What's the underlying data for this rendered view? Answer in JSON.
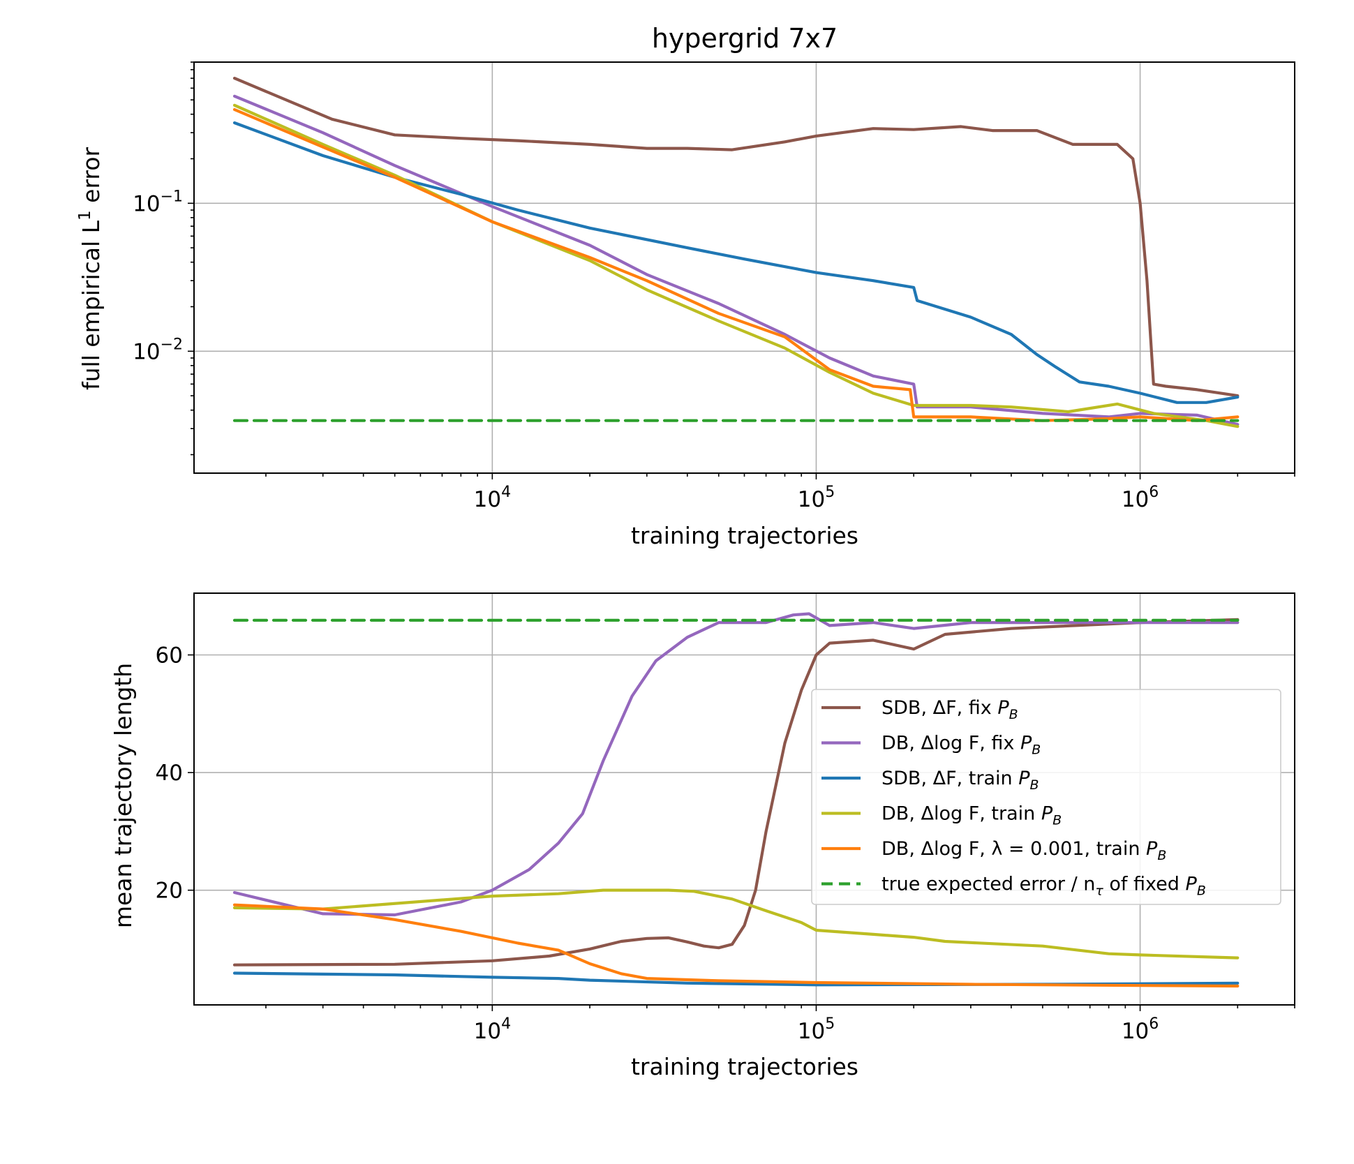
{
  "chart_data": [
    {
      "type": "line",
      "title": "hypergrid 7x7",
      "xlabel": "training trajectories",
      "ylabel": "full empirical L¹ error",
      "xscale": "log",
      "yscale": "log",
      "xlim": [
        1200,
        3000000
      ],
      "ylim": [
        0.0015,
        0.9
      ],
      "x_ticks": [
        {
          "value": 10000,
          "base": "10",
          "exp": "4"
        },
        {
          "value": 100000,
          "base": "10",
          "exp": "5"
        },
        {
          "value": 1000000,
          "base": "10",
          "exp": "6"
        }
      ],
      "y_ticks": [
        {
          "value": 0.1,
          "base": "10",
          "exp": "−1"
        },
        {
          "value": 0.01,
          "base": "10",
          "exp": "−2"
        }
      ],
      "grid": true,
      "series": [
        {
          "key": "sdb_fix",
          "color": "#8c564b",
          "dashed": false,
          "points": [
            [
              1600,
              0.7
            ],
            [
              3200,
              0.37
            ],
            [
              5000,
              0.29
            ],
            [
              8000,
              0.275
            ],
            [
              12000,
              0.265
            ],
            [
              20000,
              0.25
            ],
            [
              30000,
              0.235
            ],
            [
              40000,
              0.235
            ],
            [
              55000,
              0.23
            ],
            [
              80000,
              0.26
            ],
            [
              100000,
              0.285
            ],
            [
              150000,
              0.32
            ],
            [
              200000,
              0.315
            ],
            [
              280000,
              0.33
            ],
            [
              350000,
              0.31
            ],
            [
              480000,
              0.31
            ],
            [
              620000,
              0.25
            ],
            [
              850000,
              0.25
            ],
            [
              950000,
              0.2
            ],
            [
              1000000,
              0.1
            ],
            [
              1050000,
              0.03
            ],
            [
              1100000,
              0.006
            ],
            [
              1200000,
              0.0058
            ],
            [
              1500000,
              0.0055
            ],
            [
              2000000,
              0.005
            ]
          ]
        },
        {
          "key": "db_fix",
          "color": "#9467bd",
          "dashed": false,
          "points": [
            [
              1600,
              0.53
            ],
            [
              3000,
              0.3
            ],
            [
              5000,
              0.18
            ],
            [
              10000,
              0.095
            ],
            [
              20000,
              0.052
            ],
            [
              30000,
              0.033
            ],
            [
              50000,
              0.021
            ],
            [
              80000,
              0.013
            ],
            [
              110000,
              0.009
            ],
            [
              150000,
              0.0068
            ],
            [
              200000,
              0.006
            ],
            [
              205000,
              0.0042
            ],
            [
              300000,
              0.0042
            ],
            [
              500000,
              0.0038
            ],
            [
              800000,
              0.0036
            ],
            [
              1000000,
              0.0038
            ],
            [
              1500000,
              0.0037
            ],
            [
              2000000,
              0.0032
            ]
          ]
        },
        {
          "key": "sdb_train",
          "color": "#1f77b4",
          "dashed": false,
          "points": [
            [
              1600,
              0.35
            ],
            [
              3000,
              0.21
            ],
            [
              5000,
              0.15
            ],
            [
              8000,
              0.115
            ],
            [
              12000,
              0.09
            ],
            [
              20000,
              0.068
            ],
            [
              40000,
              0.05
            ],
            [
              60000,
              0.042
            ],
            [
              100000,
              0.034
            ],
            [
              150000,
              0.03
            ],
            [
              200000,
              0.027
            ],
            [
              205000,
              0.022
            ],
            [
              300000,
              0.017
            ],
            [
              400000,
              0.013
            ],
            [
              480000,
              0.0095
            ],
            [
              550000,
              0.0078
            ],
            [
              650000,
              0.0062
            ],
            [
              800000,
              0.0058
            ],
            [
              1000000,
              0.0052
            ],
            [
              1300000,
              0.0045
            ],
            [
              1600000,
              0.0045
            ],
            [
              2000000,
              0.0049
            ]
          ]
        },
        {
          "key": "db_train",
          "color": "#bcbd22",
          "dashed": false,
          "points": [
            [
              1600,
              0.46
            ],
            [
              3000,
              0.25
            ],
            [
              5000,
              0.155
            ],
            [
              10000,
              0.075
            ],
            [
              20000,
              0.041
            ],
            [
              30000,
              0.026
            ],
            [
              50000,
              0.016
            ],
            [
              80000,
              0.0105
            ],
            [
              110000,
              0.0072
            ],
            [
              150000,
              0.0052
            ],
            [
              200000,
              0.0043
            ],
            [
              300000,
              0.0043
            ],
            [
              400000,
              0.0042
            ],
            [
              600000,
              0.0039
            ],
            [
              850000,
              0.0044
            ],
            [
              1100000,
              0.0038
            ],
            [
              1600000,
              0.0034
            ],
            [
              2000000,
              0.0031
            ]
          ]
        },
        {
          "key": "db_reg_train",
          "color": "#ff7f0e",
          "dashed": false,
          "points": [
            [
              1600,
              0.43
            ],
            [
              3000,
              0.24
            ],
            [
              5000,
              0.15
            ],
            [
              10000,
              0.075
            ],
            [
              20000,
              0.043
            ],
            [
              30000,
              0.03
            ],
            [
              50000,
              0.018
            ],
            [
              80000,
              0.0125
            ],
            [
              110000,
              0.0075
            ],
            [
              150000,
              0.0058
            ],
            [
              195000,
              0.0055
            ],
            [
              200000,
              0.0036
            ],
            [
              300000,
              0.0036
            ],
            [
              500000,
              0.0034
            ],
            [
              800000,
              0.0035
            ],
            [
              1000000,
              0.0036
            ],
            [
              1500000,
              0.0034
            ],
            [
              2000000,
              0.0036
            ]
          ]
        },
        {
          "key": "true_error",
          "color": "#2ca02c",
          "dashed": true,
          "points": [
            [
              1600,
              0.0034
            ],
            [
              2000000,
              0.0034
            ]
          ]
        }
      ]
    },
    {
      "type": "line",
      "title": "",
      "xlabel": "training trajectories",
      "ylabel": "mean trajectory length",
      "xscale": "log",
      "yscale": "linear",
      "xlim": [
        1200,
        3000000
      ],
      "ylim": [
        0.5,
        70.5
      ],
      "x_ticks": [
        {
          "value": 10000,
          "base": "10",
          "exp": "4"
        },
        {
          "value": 100000,
          "base": "10",
          "exp": "5"
        },
        {
          "value": 1000000,
          "base": "10",
          "exp": "6"
        }
      ],
      "y_ticks": [
        {
          "value": 20,
          "label": "20"
        },
        {
          "value": 40,
          "label": "40"
        },
        {
          "value": 60,
          "label": "60"
        }
      ],
      "grid": true,
      "legend_position": "center-right",
      "series": [
        {
          "key": "sdb_fix",
          "color": "#8c564b",
          "dashed": false,
          "points": [
            [
              1600,
              7.3
            ],
            [
              5000,
              7.4
            ],
            [
              10000,
              8
            ],
            [
              15000,
              8.8
            ],
            [
              20000,
              10
            ],
            [
              25000,
              11.3
            ],
            [
              30000,
              11.8
            ],
            [
              35000,
              11.9
            ],
            [
              40000,
              11.2
            ],
            [
              45000,
              10.5
            ],
            [
              50000,
              10.2
            ],
            [
              55000,
              10.8
            ],
            [
              60000,
              14
            ],
            [
              65000,
              20
            ],
            [
              70000,
              30
            ],
            [
              80000,
              45
            ],
            [
              90000,
              54
            ],
            [
              100000,
              60
            ],
            [
              110000,
              62
            ],
            [
              150000,
              62.5
            ],
            [
              200000,
              61
            ],
            [
              250000,
              63.5
            ],
            [
              400000,
              64.5
            ],
            [
              1000000,
              65.5
            ],
            [
              2000000,
              66
            ]
          ]
        },
        {
          "key": "db_fix",
          "color": "#9467bd",
          "dashed": false,
          "points": [
            [
              1600,
              19.6
            ],
            [
              3000,
              16
            ],
            [
              5000,
              15.8
            ],
            [
              8000,
              18
            ],
            [
              10000,
              20
            ],
            [
              13000,
              23.5
            ],
            [
              16000,
              28
            ],
            [
              19000,
              33
            ],
            [
              22000,
              42
            ],
            [
              27000,
              53
            ],
            [
              32000,
              59
            ],
            [
              40000,
              63
            ],
            [
              50000,
              65.5
            ],
            [
              70000,
              65.5
            ],
            [
              85000,
              66.8
            ],
            [
              95000,
              67
            ],
            [
              110000,
              65
            ],
            [
              150000,
              65.5
            ],
            [
              200000,
              64.5
            ],
            [
              300000,
              65.5
            ],
            [
              500000,
              65.5
            ],
            [
              1000000,
              65.5
            ],
            [
              2000000,
              65.5
            ]
          ]
        },
        {
          "key": "sdb_train",
          "color": "#1f77b4",
          "dashed": false,
          "points": [
            [
              1600,
              5.9
            ],
            [
              5000,
              5.6
            ],
            [
              10000,
              5.2
            ],
            [
              16000,
              5
            ],
            [
              20000,
              4.7
            ],
            [
              40000,
              4.2
            ],
            [
              100000,
              3.9
            ],
            [
              500000,
              4
            ],
            [
              1000000,
              4.1
            ],
            [
              2000000,
              4.2
            ]
          ]
        },
        {
          "key": "db_train",
          "color": "#bcbd22",
          "dashed": false,
          "points": [
            [
              1600,
              17
            ],
            [
              3000,
              16.8
            ],
            [
              10000,
              19
            ],
            [
              16000,
              19.4
            ],
            [
              22000,
              20
            ],
            [
              35000,
              20
            ],
            [
              42000,
              19.8
            ],
            [
              55000,
              18.5
            ],
            [
              70000,
              16.5
            ],
            [
              90000,
              14.5
            ],
            [
              100000,
              13.2
            ],
            [
              150000,
              12.5
            ],
            [
              200000,
              12
            ],
            [
              250000,
              11.3
            ],
            [
              500000,
              10.5
            ],
            [
              800000,
              9.2
            ],
            [
              1000000,
              9
            ],
            [
              2000000,
              8.5
            ]
          ]
        },
        {
          "key": "db_reg_train",
          "color": "#ff7f0e",
          "dashed": false,
          "points": [
            [
              1600,
              17.5
            ],
            [
              3000,
              16.8
            ],
            [
              5000,
              15
            ],
            [
              8000,
              13
            ],
            [
              12000,
              11
            ],
            [
              16000,
              9.8
            ],
            [
              20000,
              7.5
            ],
            [
              25000,
              5.8
            ],
            [
              30000,
              5
            ],
            [
              50000,
              4.6
            ],
            [
              100000,
              4.3
            ],
            [
              300000,
              4
            ],
            [
              1000000,
              3.8
            ],
            [
              2000000,
              3.7
            ]
          ]
        },
        {
          "key": "true_error",
          "color": "#2ca02c",
          "dashed": true,
          "points": [
            [
              1600,
              65.9
            ],
            [
              2000000,
              65.9
            ]
          ]
        }
      ]
    }
  ],
  "legend": [
    {
      "key": "sdb_fix",
      "color": "#8c564b",
      "dashed": false,
      "label_prefix": "SDB, ΔF, fix ",
      "sub_var": "P",
      "sub_idx": "B"
    },
    {
      "key": "db_fix",
      "color": "#9467bd",
      "dashed": false,
      "label_prefix": "DB, Δlog F, fix ",
      "sub_var": "P",
      "sub_idx": "B"
    },
    {
      "key": "sdb_train",
      "color": "#1f77b4",
      "dashed": false,
      "label_prefix": "SDB, ΔF, train ",
      "sub_var": "P",
      "sub_idx": "B"
    },
    {
      "key": "db_train",
      "color": "#bcbd22",
      "dashed": false,
      "label_prefix": "DB, Δlog F, train ",
      "sub_var": "P",
      "sub_idx": "B"
    },
    {
      "key": "db_reg_train",
      "color": "#ff7f0e",
      "dashed": false,
      "label_prefix": "DB, Δlog F, λ = 0.001, train ",
      "sub_var": "P",
      "sub_idx": "B"
    },
    {
      "key": "true_error",
      "color": "#2ca02c",
      "dashed": true,
      "label_prefix": "true expected error / n",
      "sub_var": "",
      "sub_idx": "τ",
      "label_suffix": " of fixed ",
      "sub2_var": "P",
      "sub2_idx": "B"
    }
  ]
}
